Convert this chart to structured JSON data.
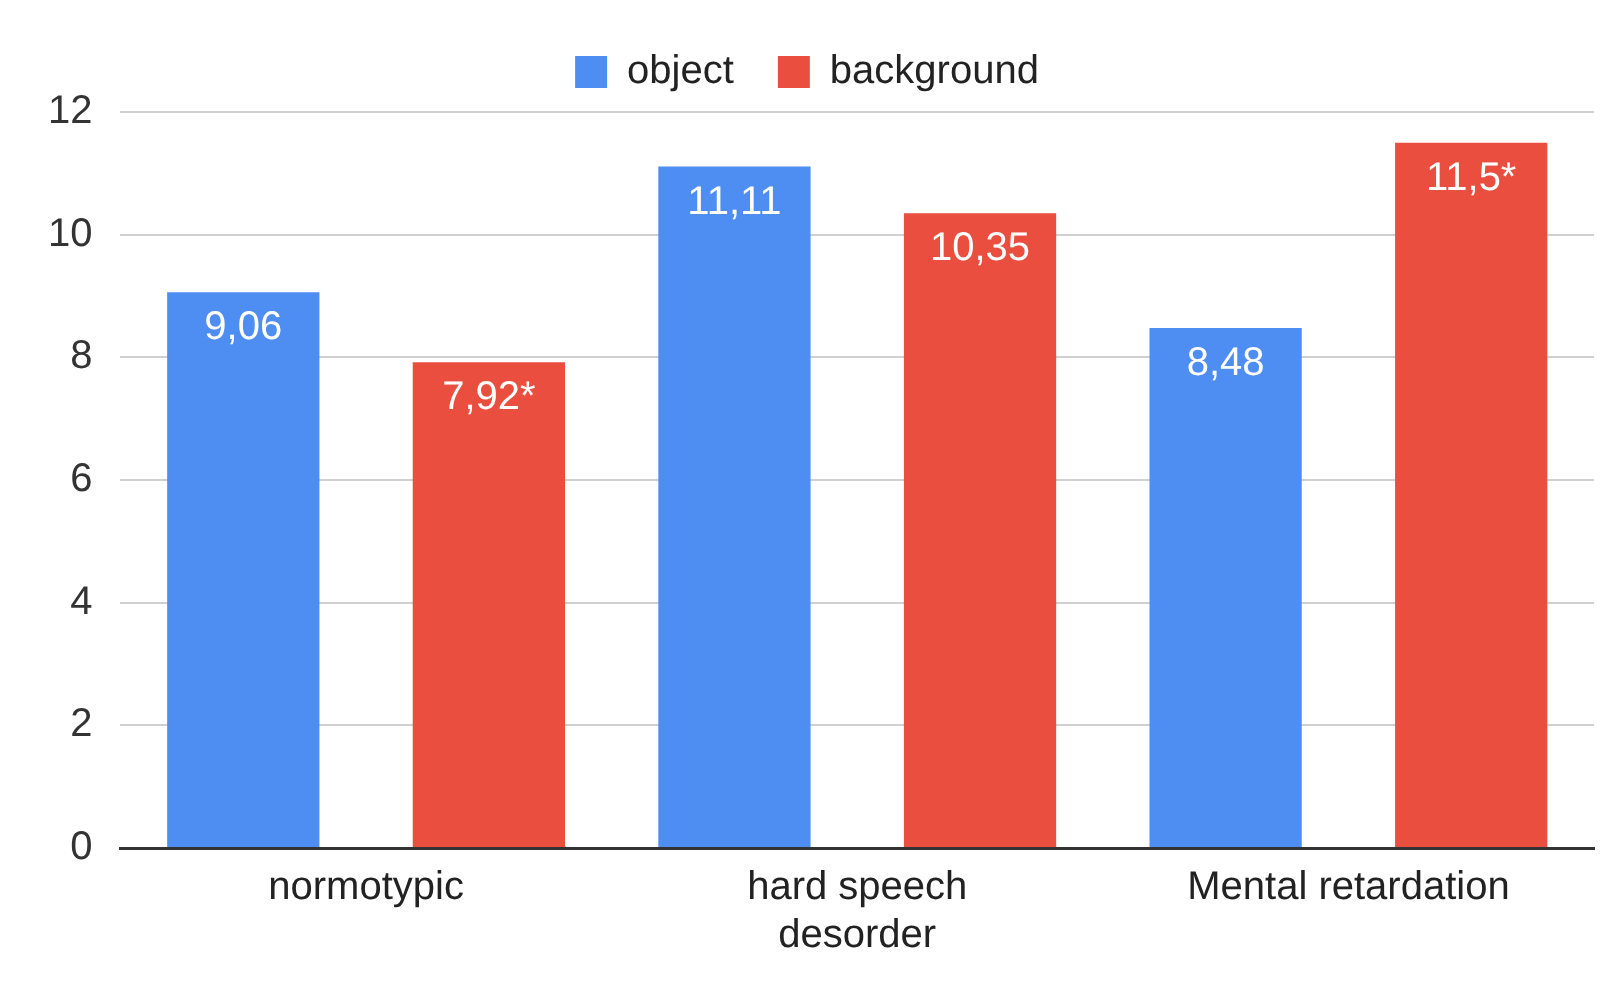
{
  "chart_data": {
    "type": "bar",
    "categories": [
      "normotypic",
      "hard speech desorder",
      "Mental retardation"
    ],
    "series": [
      {
        "name": "object",
        "color": "#4e8ef2",
        "values": [
          9.06,
          11.11,
          8.48
        ],
        "value_labels": [
          "9,06",
          "11,11",
          "8,48"
        ]
      },
      {
        "name": "background",
        "color": "#ea4e3e",
        "values": [
          7.92,
          10.35,
          11.5
        ],
        "value_labels": [
          "7,92*",
          "10,35",
          "11,5*"
        ]
      }
    ],
    "ylim": [
      0,
      12
    ],
    "yticks": [
      0,
      2,
      4,
      6,
      8,
      10,
      12
    ],
    "grid": "y",
    "legend": "top"
  }
}
